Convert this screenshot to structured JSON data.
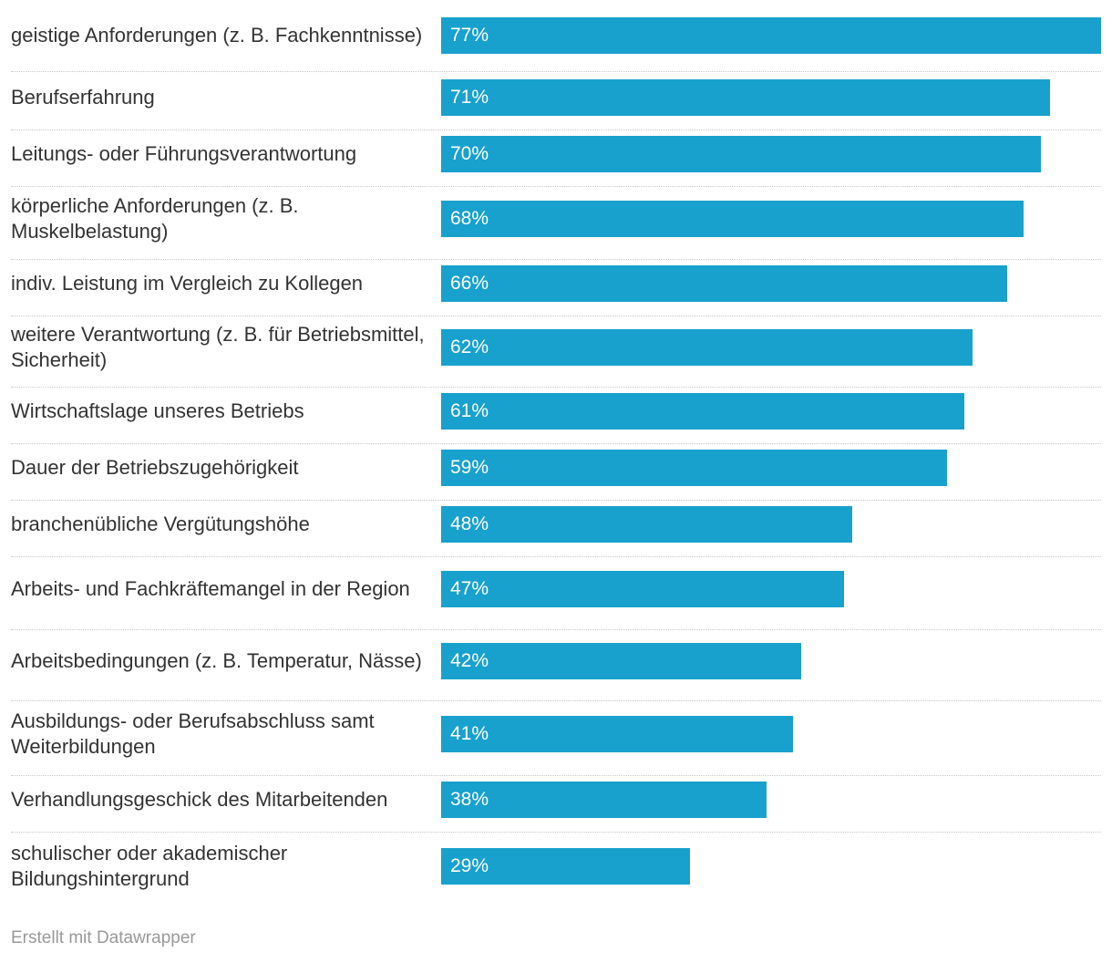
{
  "chart_data": {
    "type": "bar",
    "orientation": "horizontal",
    "value_suffix": "%",
    "xlim": [
      0,
      77
    ],
    "bar_color": "#18a1cd",
    "categories": [
      "geistige Anforderungen (z. B. Fachkenntnisse)",
      "Berufserfahrung",
      "Leitungs- oder Führungsverantwortung",
      "körperliche Anforderungen (z. B. Muskelbelastung)",
      "indiv. Leistung im Vergleich zu Kollegen",
      "weitere Verantwortung (z. B. für Betriebsmittel, Sicherheit)",
      "Wirtschaftslage unseres Betriebs",
      "Dauer der Betriebszugehörigkeit",
      "branchenübliche Vergütungshöhe",
      "Arbeits- und Fachkräftemangel in der Region",
      "Arbeitsbedingungen (z. B. Temperatur, Nässe)",
      "Ausbildungs- oder Berufsabschluss samt Weiterbildungen",
      "Verhandlungsgeschick des Mitarbeitenden",
      "schulischer oder akademischer Bildungshintergrund"
    ],
    "values": [
      77,
      71,
      70,
      68,
      66,
      62,
      61,
      59,
      48,
      47,
      42,
      41,
      38,
      29
    ],
    "value_labels": [
      "77%",
      "71%",
      "70%",
      "68%",
      "66%",
      "62%",
      "61%",
      "59%",
      "48%",
      "47%",
      "42%",
      "41%",
      "38%",
      "29%"
    ]
  },
  "footer": {
    "credit": "Erstellt mit Datawrapper"
  }
}
